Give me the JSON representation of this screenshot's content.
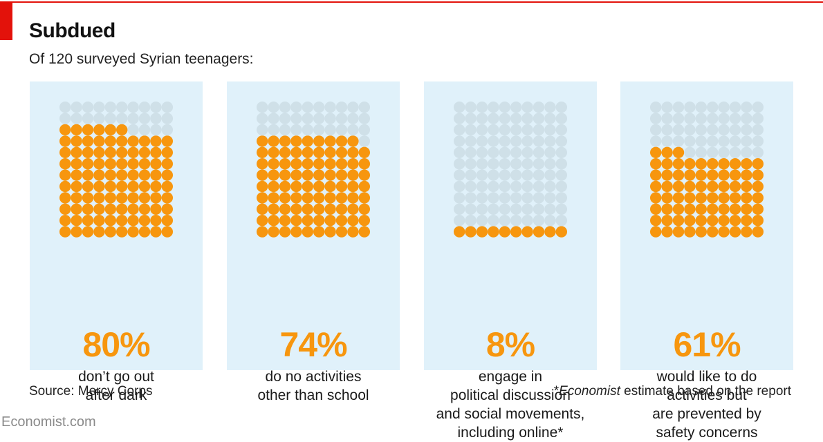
{
  "header": {
    "title": "Subdued",
    "subtitle": "Of 120 surveyed Syrian teenagers:"
  },
  "colors": {
    "accent_red": "#e3120b",
    "filled": "#f7960e",
    "empty": "#cfe0e8",
    "panel_bg": "#e0f1fa"
  },
  "chart_data": {
    "type": "waffle",
    "title": "Subdued",
    "subtitle": "Of 120 surveyed Syrian teenagers:",
    "grid": {
      "rows": 12,
      "cols": 10,
      "total": 120
    },
    "panels": [
      {
        "percent": 80,
        "label": "80%",
        "count": 96,
        "description_lines": [
          "don’t go out",
          "after dark"
        ]
      },
      {
        "percent": 74,
        "label": "74%",
        "count": 89,
        "description_lines": [
          "do no activities",
          "other than school"
        ]
      },
      {
        "percent": 8,
        "label": "8%",
        "count": 10,
        "description_lines": [
          "engage in",
          "political discussion",
          "and social movements,",
          "including online*"
        ]
      },
      {
        "percent": 61,
        "label": "61%",
        "count": 73,
        "description_lines": [
          "would like to do",
          "activities but",
          "are prevented by",
          "safety concerns"
        ]
      }
    ]
  },
  "footer": {
    "source": "Source: Mercy Corps",
    "footnote_prefix": "*",
    "footnote_italic": "Economist",
    "footnote_rest": " estimate based on the report",
    "brand": "Economist.com"
  }
}
